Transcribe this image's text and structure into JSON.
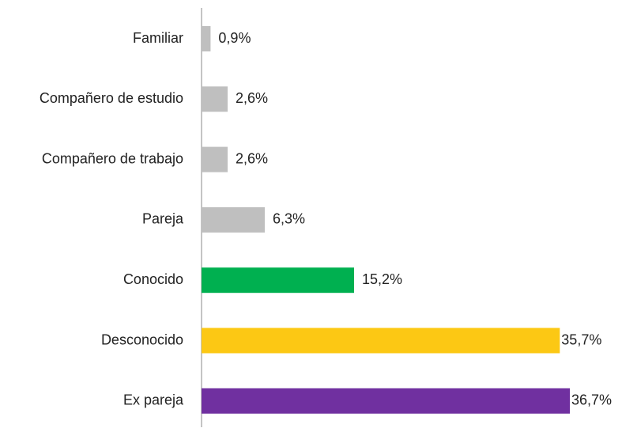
{
  "chart_data": {
    "type": "bar",
    "orientation": "horizontal",
    "categories": [
      "Familiar",
      "Compañero de estudio",
      "Compañero de trabajo",
      "Pareja",
      "Conocido",
      "Desconocido",
      "Ex pareja"
    ],
    "values": [
      0.9,
      2.6,
      2.6,
      6.3,
      15.2,
      35.7,
      36.7
    ],
    "value_labels": [
      "0,9%",
      "2,6%",
      "2,6%",
      "6,3%",
      "15,2%",
      "35,7%",
      "36,7%"
    ],
    "colors": [
      "#bfbfbf",
      "#bfbfbf",
      "#bfbfbf",
      "#bfbfbf",
      "#00b050",
      "#fcc814",
      "#7030a0"
    ]
  }
}
